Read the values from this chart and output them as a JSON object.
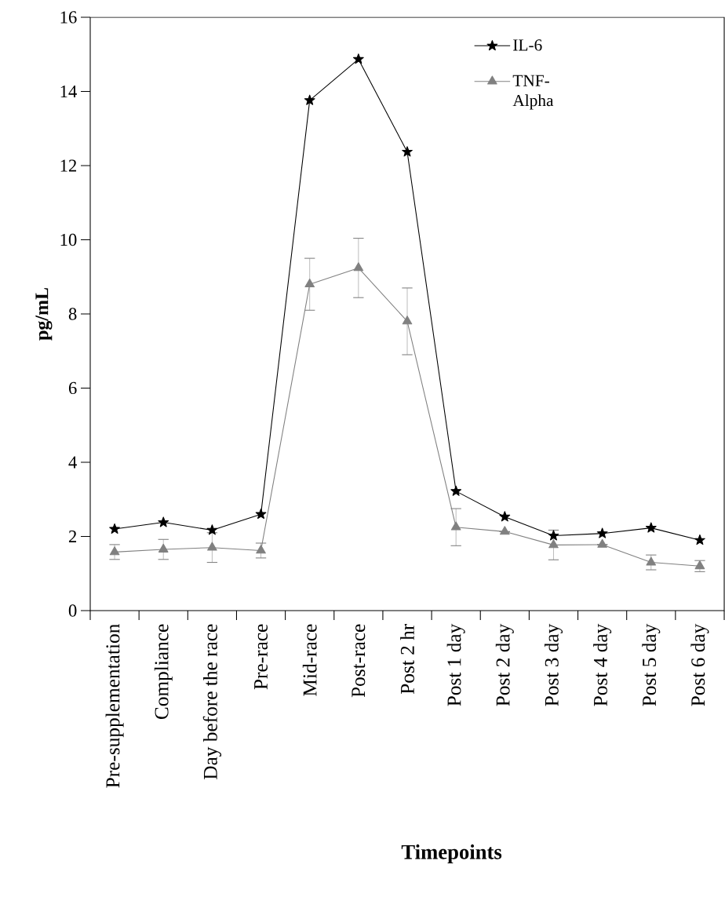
{
  "chart_data": {
    "type": "line",
    "xlabel": "Timepoints",
    "ylabel": "pg/mL",
    "categories": [
      "Pre-supplementation",
      "Compliance",
      "Day before the race",
      "Pre-race",
      "Mid-race",
      "Post-race",
      "Post 2 hr",
      "Post 1 day",
      "Post 2 day",
      "Post 3 day",
      "Post 4 day",
      "Post 5 day",
      "Post 6 day"
    ],
    "ylim": [
      0,
      16
    ],
    "yticks": [
      0,
      2,
      4,
      6,
      8,
      10,
      12,
      14,
      16
    ],
    "legend": "top right",
    "series": [
      {
        "name": "IL-6",
        "color": "#000000",
        "marker": "star",
        "values": [
          2.2,
          2.38,
          2.17,
          2.6,
          13.76,
          14.87,
          12.37,
          3.22,
          2.53,
          2.02,
          2.08,
          2.23,
          1.9
        ]
      },
      {
        "name": "TNF-Alpha",
        "color": "#808080",
        "marker": "triangle",
        "values": [
          1.58,
          1.65,
          1.7,
          1.62,
          8.8,
          9.24,
          7.8,
          2.25,
          2.13,
          1.77,
          1.78,
          1.3,
          1.2
        ],
        "errors": [
          0.2,
          0.27,
          0.4,
          0.2,
          0.7,
          0.8,
          0.9,
          0.5,
          null,
          0.4,
          null,
          0.2,
          0.15
        ]
      }
    ]
  }
}
